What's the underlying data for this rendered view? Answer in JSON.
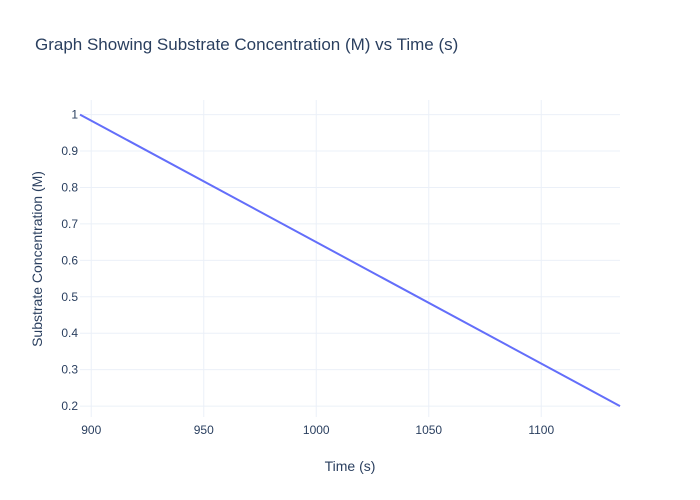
{
  "chart_data": {
    "type": "line",
    "title": "Graph Showing Substrate Concentration (M) vs Time (s)",
    "xlabel": "Time (s)",
    "ylabel": "Substrate Concentration (M)",
    "xlim": [
      895,
      1135
    ],
    "ylim": [
      0.17,
      1.04
    ],
    "x_ticks": [
      900,
      950,
      1000,
      1050,
      1100
    ],
    "y_ticks": [
      0.2,
      0.3,
      0.4,
      0.5,
      0.6,
      0.7,
      0.8,
      0.9,
      1
    ],
    "x_tick_labels": [
      "900",
      "950",
      "1000",
      "1050",
      "1100"
    ],
    "y_tick_labels": [
      "0.2",
      "0.3",
      "0.4",
      "0.5",
      "0.6",
      "0.7",
      "0.8",
      "0.9",
      "1"
    ],
    "grid": true,
    "series": [
      {
        "x": [
          895,
          1135
        ],
        "y": [
          1.0,
          0.2
        ]
      }
    ],
    "colors": {
      "line": "#636efa",
      "grid": "#ebf0f8",
      "text": "#2a3f5f"
    }
  }
}
